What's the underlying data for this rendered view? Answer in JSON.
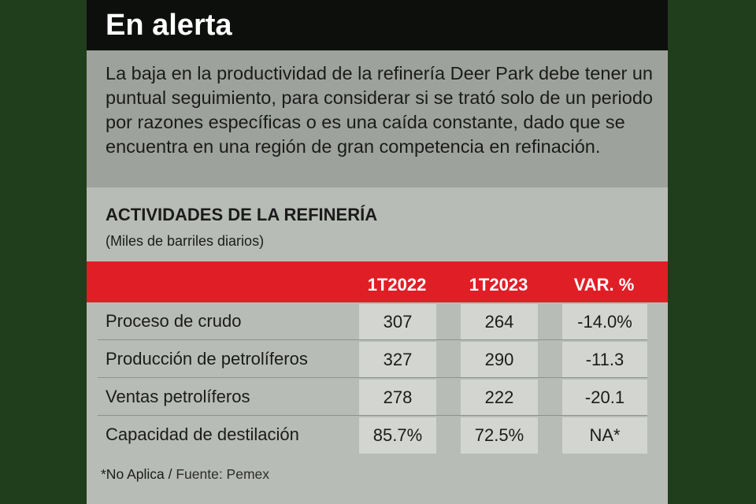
{
  "header": {
    "title": "En alerta"
  },
  "intro": {
    "text": "La baja en la productividad de la refinería Deer Park debe tener un puntual seguimiento, para considerar si se trató solo de un periodo por razones específicas o es una caída constante, dado que se encuentra en una región de gran competencia en refinación."
  },
  "table": {
    "title": "ACTIVIDADES DE LA REFINERÍA",
    "subtitle": "(Miles de barriles diarios)",
    "columns": [
      "",
      "1T2022",
      "1T2023",
      "VAR. %"
    ],
    "rows": [
      {
        "label": "Proceso de crudo",
        "v2022": "307",
        "v2023": "264",
        "var": "-14.0%"
      },
      {
        "label": "Producción de petrolíferos",
        "v2022": "327",
        "v2023": "290",
        "var": "-11.3"
      },
      {
        "label": "Ventas petrolíferos",
        "v2022": "278",
        "v2023": "222",
        "var": "-20.1"
      },
      {
        "label": "Capacidad de destilación",
        "v2022": "85.7%",
        "v2023": "72.5%",
        "var": "NA*"
      }
    ]
  },
  "footnote": {
    "note": "*No Aplica /",
    "source": " Fuente: Pemex"
  },
  "colors": {
    "background": "#203d1c",
    "header": "#0d0f0d",
    "table_header": "#e01e26",
    "panel": "#b8bcb6",
    "intro_panel": "#9ea29c"
  }
}
